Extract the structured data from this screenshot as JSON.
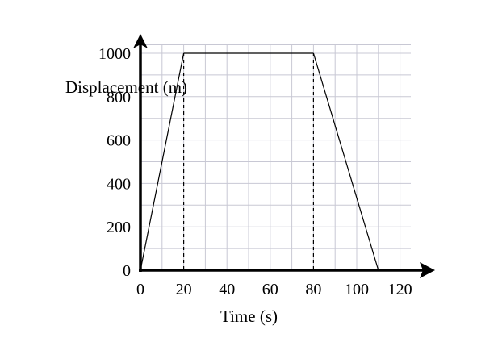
{
  "chart_data": {
    "type": "line",
    "title": "",
    "xlabel": "Time (s)",
    "ylabel": "Displacement (m)",
    "xlim": [
      0,
      125
    ],
    "ylim": [
      0,
      1050
    ],
    "x_ticks": [
      "0",
      "20",
      "40",
      "60",
      "80",
      "100",
      "120"
    ],
    "y_ticks": [
      "0",
      "200",
      "400",
      "600",
      "800",
      "1000"
    ],
    "grid": true,
    "series": [
      {
        "x": [
          0,
          20,
          80,
          110
        ],
        "y": [
          0,
          1000,
          1000,
          0
        ]
      }
    ],
    "dashed_guides_x": [
      20,
      80
    ],
    "line_color": "#000000",
    "grid_color": "#c8c8d4"
  }
}
